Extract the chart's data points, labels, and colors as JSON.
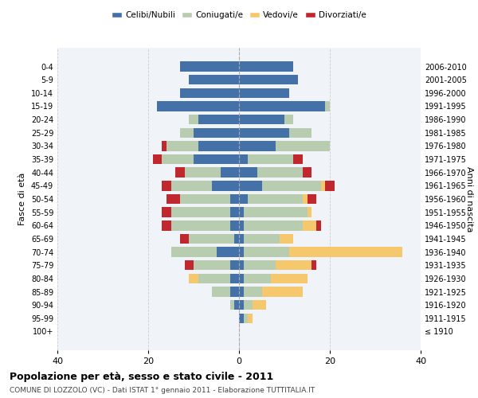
{
  "age_groups": [
    "100+",
    "95-99",
    "90-94",
    "85-89",
    "80-84",
    "75-79",
    "70-74",
    "65-69",
    "60-64",
    "55-59",
    "50-54",
    "45-49",
    "40-44",
    "35-39",
    "30-34",
    "25-29",
    "20-24",
    "15-19",
    "10-14",
    "5-9",
    "0-4"
  ],
  "birth_years": [
    "≤ 1910",
    "1911-1915",
    "1916-1920",
    "1921-1925",
    "1926-1930",
    "1931-1935",
    "1936-1940",
    "1941-1945",
    "1946-1950",
    "1951-1955",
    "1956-1960",
    "1961-1965",
    "1966-1970",
    "1971-1975",
    "1976-1980",
    "1981-1985",
    "1986-1990",
    "1991-1995",
    "1996-2000",
    "2001-2005",
    "2006-2010"
  ],
  "males": {
    "celibi": [
      0,
      0,
      1,
      2,
      2,
      2,
      5,
      1,
      2,
      2,
      2,
      6,
      4,
      10,
      9,
      10,
      9,
      18,
      13,
      11,
      13
    ],
    "coniugati": [
      0,
      0,
      1,
      4,
      7,
      8,
      10,
      10,
      13,
      13,
      11,
      9,
      8,
      7,
      7,
      3,
      2,
      0,
      0,
      0,
      0
    ],
    "vedovi": [
      0,
      0,
      0,
      0,
      2,
      0,
      0,
      0,
      0,
      0,
      0,
      0,
      0,
      0,
      0,
      0,
      0,
      0,
      0,
      0,
      0
    ],
    "divorziati": [
      0,
      0,
      0,
      0,
      0,
      2,
      0,
      2,
      2,
      2,
      3,
      2,
      2,
      2,
      1,
      0,
      0,
      0,
      0,
      0,
      0
    ]
  },
  "females": {
    "nubili": [
      0,
      1,
      1,
      1,
      1,
      1,
      1,
      1,
      1,
      1,
      2,
      5,
      4,
      2,
      8,
      11,
      10,
      19,
      11,
      13,
      12
    ],
    "coniugate": [
      0,
      1,
      2,
      4,
      6,
      7,
      10,
      8,
      13,
      14,
      12,
      13,
      10,
      10,
      12,
      5,
      2,
      1,
      0,
      0,
      0
    ],
    "vedove": [
      0,
      1,
      3,
      9,
      8,
      8,
      25,
      3,
      3,
      1,
      1,
      1,
      0,
      0,
      0,
      0,
      0,
      0,
      0,
      0,
      0
    ],
    "divorziate": [
      0,
      0,
      0,
      0,
      0,
      1,
      0,
      0,
      1,
      0,
      2,
      2,
      2,
      2,
      0,
      0,
      0,
      0,
      0,
      0,
      0
    ]
  },
  "colors": {
    "celibi": "#4472a8",
    "coniugati": "#b8ccb0",
    "vedovi": "#f5c86e",
    "divorziati": "#c0282e"
  },
  "title": "Popolazione per età, sesso e stato civile - 2011",
  "subtitle": "COMUNE DI LOZZOLO (VC) - Dati ISTAT 1° gennaio 2011 - Elaborazione TUTTITALIA.IT",
  "ylabel_left": "Fasce di età",
  "ylabel_right": "Anni di nascita",
  "xlim": 40,
  "legend_labels": [
    "Celibi/Nubili",
    "Coniugati/e",
    "Vedovi/e",
    "Divorziati/e"
  ],
  "background_color": "#ffffff",
  "grid_color": "#cccccc"
}
